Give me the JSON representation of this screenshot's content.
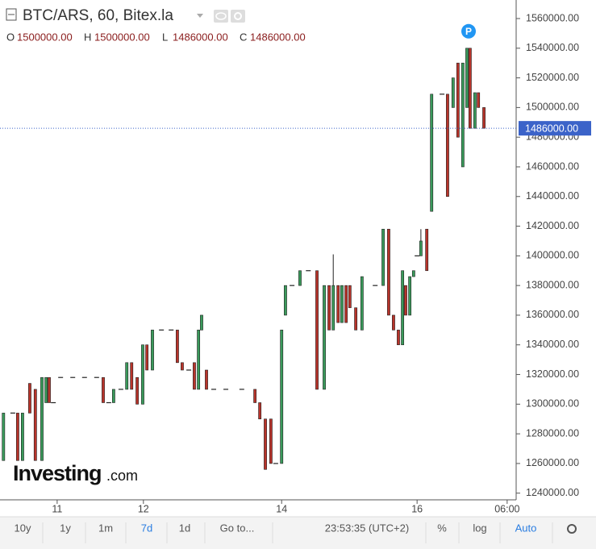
{
  "chart_data": {
    "type": "candlestick",
    "title": "BTC/ARS, 60, Bitex.la",
    "ohlc_legend": [
      {
        "key": "O",
        "value": "1500000.00"
      },
      {
        "key": "H",
        "value": "1500000.00"
      },
      {
        "key": "L",
        "value": "1486000.00"
      },
      {
        "key": "C",
        "value": "1486000.00"
      }
    ],
    "up_color": "#3a9a5b",
    "down_color": "#b8342b",
    "x": [
      0,
      2.7,
      4.1,
      5.5,
      7.6,
      9.2,
      11.1,
      12.3,
      13.2,
      14.4,
      16.5,
      20,
      23.4,
      26.9,
      28.8,
      30.4,
      31.8,
      33.9,
      35.6,
      37,
      38.6,
      40.2,
      41.4,
      43,
      45.6,
      48.4,
      50.2,
      51.6,
      53.5,
      55.1,
      56.3,
      57.2,
      58.6,
      60.7,
      64.2,
      68.8,
      72.6,
      74,
      75.6,
      77.2,
      78.6,
      80.3,
      81.4,
      83.3,
      85.6,
      88,
      90.5,
      92.6,
      94,
      95.2,
      96.6,
      97.7,
      98.9,
      100,
      101.7,
      103.5,
      107.3,
      109.6,
      111.2,
      112.6,
      114,
      115.2,
      116.1,
      117.3,
      118.4,
      119.4,
      120.5,
      122.2,
      123.6,
      126.6,
      128.2,
      129.8,
      131.2,
      132.6,
      133.8,
      134.7,
      136.1,
      137.1,
      138.7
    ],
    "open": [
      1262000,
      1294000,
      1294000,
      1262000,
      1314000,
      1310000,
      1262000,
      1301000,
      1318000,
      1301000,
      1318000,
      1318000,
      1318000,
      1318000,
      1318000,
      1301000,
      1301000,
      1310000,
      1310000,
      1328000,
      1318000,
      1300000,
      1340000,
      1323000,
      1350000,
      1350000,
      1350000,
      1328000,
      1323000,
      1328000,
      1310000,
      1350000,
      1323000,
      1310000,
      1310000,
      1310000,
      1310000,
      1301000,
      1290000,
      1290000,
      1260000,
      1260000,
      1360000,
      1380000,
      1380000,
      1390000,
      1390000,
      1310000,
      1380000,
      1350000,
      1380000,
      1355000,
      1380000,
      1380000,
      1365000,
      1350000,
      1380000,
      1380000,
      1418000,
      1360000,
      1350000,
      1340000,
      1380000,
      1360000,
      1386000,
      1400000,
      1400000,
      1418000,
      1430000,
      1509000,
      1509000,
      1500000,
      1530000,
      1460000,
      1500000,
      1540000,
      1486000,
      1510000,
      1500000
    ],
    "high": [
      1294000,
      1294000,
      1294000,
      1294000,
      1314000,
      1310000,
      1318000,
      1318000,
      1318000,
      1301000,
      1318000,
      1318000,
      1318000,
      1318000,
      1318000,
      1301000,
      1310000,
      1310000,
      1328000,
      1328000,
      1318000,
      1340000,
      1340000,
      1350000,
      1350000,
      1350000,
      1350000,
      1328000,
      1323000,
      1328000,
      1350000,
      1360000,
      1323000,
      1310000,
      1310000,
      1310000,
      1310000,
      1301000,
      1290000,
      1290000,
      1260000,
      1350000,
      1380000,
      1380000,
      1390000,
      1390000,
      1390000,
      1380000,
      1380000,
      1401000,
      1380000,
      1380000,
      1380000,
      1380000,
      1365000,
      1386000,
      1380000,
      1418000,
      1418000,
      1360000,
      1350000,
      1390000,
      1380000,
      1386000,
      1390000,
      1400000,
      1418000,
      1418000,
      1509000,
      1509000,
      1509000,
      1520000,
      1530000,
      1530000,
      1540000,
      1540000,
      1510000,
      1510000,
      1500000
    ],
    "low": [
      1262000,
      1294000,
      1262000,
      1262000,
      1294000,
      1262000,
      1262000,
      1301000,
      1301000,
      1301000,
      1318000,
      1318000,
      1318000,
      1318000,
      1301000,
      1301000,
      1301000,
      1310000,
      1310000,
      1310000,
      1300000,
      1300000,
      1323000,
      1323000,
      1350000,
      1350000,
      1328000,
      1323000,
      1323000,
      1310000,
      1310000,
      1350000,
      1310000,
      1310000,
      1310000,
      1310000,
      1301000,
      1290000,
      1256000,
      1260000,
      1260000,
      1260000,
      1360000,
      1380000,
      1380000,
      1390000,
      1310000,
      1310000,
      1350000,
      1350000,
      1355000,
      1355000,
      1355000,
      1365000,
      1350000,
      1350000,
      1380000,
      1380000,
      1360000,
      1350000,
      1340000,
      1340000,
      1360000,
      1360000,
      1386000,
      1400000,
      1400000,
      1390000,
      1430000,
      1509000,
      1440000,
      1500000,
      1480000,
      1460000,
      1500000,
      1486000,
      1486000,
      1500000,
      1486000
    ],
    "close": [
      1294000,
      1294000,
      1262000,
      1294000,
      1294000,
      1262000,
      1318000,
      1318000,
      1301000,
      1301000,
      1318000,
      1318000,
      1318000,
      1318000,
      1301000,
      1301000,
      1310000,
      1310000,
      1328000,
      1310000,
      1300000,
      1340000,
      1323000,
      1350000,
      1350000,
      1350000,
      1328000,
      1323000,
      1323000,
      1310000,
      1350000,
      1360000,
      1310000,
      1310000,
      1310000,
      1310000,
      1301000,
      1290000,
      1256000,
      1260000,
      1260000,
      1350000,
      1380000,
      1380000,
      1390000,
      1390000,
      1310000,
      1380000,
      1350000,
      1380000,
      1355000,
      1380000,
      1355000,
      1365000,
      1350000,
      1386000,
      1380000,
      1418000,
      1360000,
      1350000,
      1340000,
      1390000,
      1360000,
      1386000,
      1390000,
      1400000,
      1410000,
      1390000,
      1509000,
      1509000,
      1440000,
      1520000,
      1480000,
      1530000,
      1540000,
      1486000,
      1510000,
      1500000,
      1486000
    ],
    "xlim": [
      -1,
      148
    ],
    "xticks": [
      {
        "value": 15.5,
        "label": "11"
      },
      {
        "value": 40.4,
        "label": "12"
      },
      {
        "value": 80.3,
        "label": "14"
      },
      {
        "value": 119.4,
        "label": "16"
      },
      {
        "value": 145.4,
        "label": "06:00"
      }
    ],
    "ylim": [
      1235500,
      1572500
    ],
    "yticks": [
      {
        "value": 1240000,
        "label": "1240000.00"
      },
      {
        "value": 1260000,
        "label": "1260000.00"
      },
      {
        "value": 1280000,
        "label": "1280000.00"
      },
      {
        "value": 1300000,
        "label": "1300000.00"
      },
      {
        "value": 1320000,
        "label": "1320000.00"
      },
      {
        "value": 1340000,
        "label": "1340000.00"
      },
      {
        "value": 1360000,
        "label": "1360000.00"
      },
      {
        "value": 1380000,
        "label": "1380000.00"
      },
      {
        "value": 1400000,
        "label": "1400000.00"
      },
      {
        "value": 1420000,
        "label": "1420000.00"
      },
      {
        "value": 1440000,
        "label": "1440000.00"
      },
      {
        "value": 1460000,
        "label": "1460000.00"
      },
      {
        "value": 1480000,
        "label": "1480000.00"
      },
      {
        "value": 1500000,
        "label": "1500000.00"
      },
      {
        "value": 1520000,
        "label": "1520000.00"
      },
      {
        "value": 1540000,
        "label": "1540000.00"
      },
      {
        "value": 1560000,
        "label": "1560000.00"
      }
    ],
    "last_price": {
      "value": 1486000,
      "label": "1486000.00",
      "color": "#3b63c9"
    },
    "marker": "P",
    "grid": false
  },
  "logo": {
    "brand": "Investing",
    "suffix": ".com"
  },
  "toolbar": {
    "ranges": [
      {
        "label": "10y"
      },
      {
        "label": "1y"
      },
      {
        "label": "1m"
      },
      {
        "label": "7d",
        "active": true
      },
      {
        "label": "1d"
      }
    ],
    "goto": "Go to...",
    "clock": "23:53:35 (UTC+2)",
    "percent": "%",
    "log": "log",
    "auto": "Auto"
  }
}
